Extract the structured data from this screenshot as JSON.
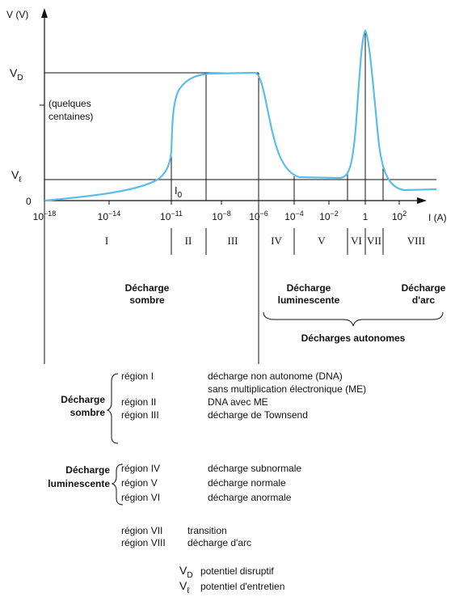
{
  "graph": {
    "y_axis_label": "V (V)",
    "x_axis_label": "I (A)",
    "y_labels": [
      {
        "symbol": "V",
        "sub": "D"
      },
      {
        "symbol": "V",
        "sub": "ℓ"
      },
      {
        "symbol": "0"
      }
    ],
    "y_note": [
      "(quelques",
      "centaines)"
    ],
    "i0_label": {
      "symbol": "I",
      "sub": "0"
    },
    "x_ticks": [
      {
        "base": "10",
        "exp": "−18"
      },
      {
        "base": "10",
        "exp": "−14"
      },
      {
        "base": "10",
        "exp": "−11"
      },
      {
        "base": "10",
        "exp": "−8"
      },
      {
        "base": "10",
        "exp": "−6"
      },
      {
        "base": "10",
        "exp": "−4"
      },
      {
        "base": "10",
        "exp": "−2"
      },
      {
        "base": "1"
      },
      {
        "base": "10",
        "exp": "2"
      }
    ],
    "regions": [
      "I",
      "II",
      "III",
      "IV",
      "V",
      "VI",
      "VII",
      "VIII"
    ]
  },
  "groups": {
    "sombre": [
      "Décharge",
      "sombre"
    ],
    "luminescente": [
      "Décharge",
      "luminescente"
    ],
    "arc": [
      "Décharge",
      "d'arc"
    ],
    "autonomes": "Décharges autonomes"
  },
  "legend": {
    "sombre": {
      "title": [
        "Décharge",
        "sombre"
      ],
      "rows": [
        {
          "region": "région I",
          "text": "décharge non autonome (DNA)"
        },
        {
          "region": "",
          "text": "sans multiplication électronique (ME)"
        },
        {
          "region": "région II",
          "text": "DNA avec ME"
        },
        {
          "region": "région III",
          "text": "décharge de Townsend"
        }
      ]
    },
    "luminescente": {
      "title": [
        "Décharge",
        "luminescente"
      ],
      "rows": [
        {
          "region": "région IV",
          "text": "décharge subnormale"
        },
        {
          "region": "région V",
          "text": "décharge normale"
        },
        {
          "region": "région VI",
          "text": "décharge anormale"
        }
      ]
    },
    "other": [
      {
        "region": "région VII",
        "text": "transition"
      },
      {
        "region": "région VIII",
        "text": "décharge d'arc"
      }
    ],
    "symbols": [
      {
        "symbol": "V",
        "sub": "D",
        "text": "potentiel disruptif"
      },
      {
        "symbol": "V",
        "sub": "ℓ",
        "text": "potentiel d'entretien"
      }
    ]
  }
}
